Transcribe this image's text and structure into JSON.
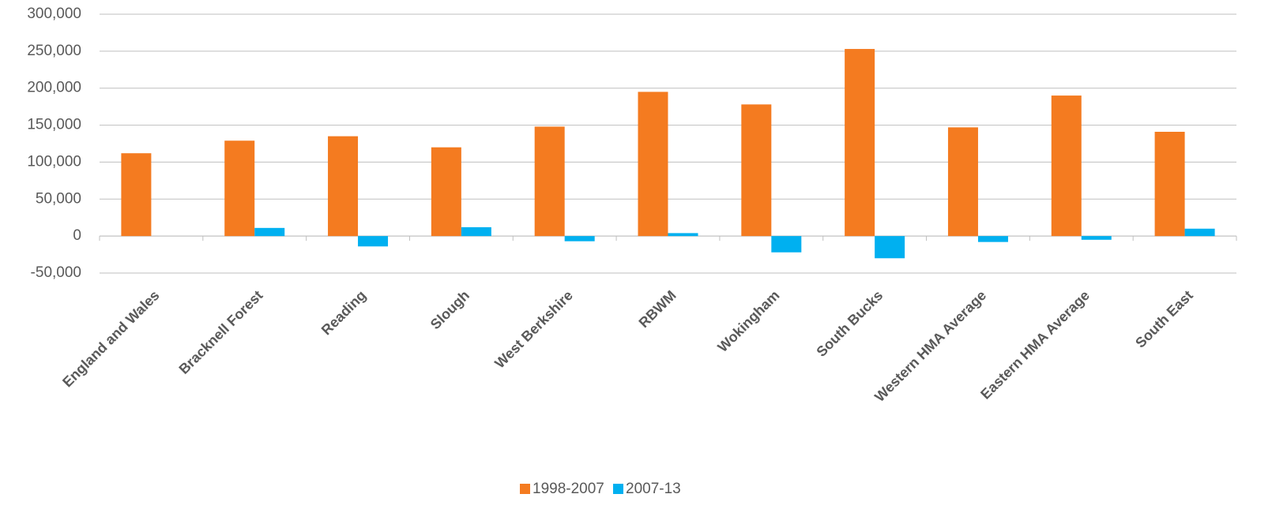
{
  "chart_data": {
    "type": "bar",
    "categories": [
      "England and Wales",
      "Bracknell Forest",
      "Reading",
      "Slough",
      "West Berkshire",
      "RBWM",
      "Wokingham",
      "South Bucks",
      "Western HMA Average",
      "Eastern HMA Average",
      "South East"
    ],
    "series": [
      {
        "name": "1998-2007",
        "color": "#f47b20",
        "values": [
          112000,
          129000,
          135000,
          120000,
          148000,
          195000,
          178000,
          253000,
          147000,
          190000,
          141000
        ]
      },
      {
        "name": "2007-13",
        "color": "#00b0f0",
        "values": [
          null,
          11000,
          -14000,
          12000,
          -7000,
          4000,
          -22000,
          -30000,
          -8000,
          -5000,
          10000
        ]
      }
    ],
    "ylim": [
      -50000,
      300000
    ],
    "yticks": [
      {
        "value": -50000,
        "label": "-50,000"
      },
      0,
      {
        "value": 50000,
        "label": "50,000"
      },
      {
        "value": 100000,
        "label": "100,000"
      },
      {
        "value": 150000,
        "label": "150,000"
      },
      {
        "value": 200000,
        "label": "200,000"
      },
      {
        "value": 250000,
        "label": "250,000"
      },
      {
        "value": 300000,
        "label": "300,000"
      }
    ],
    "grid": true,
    "legend": "bottom"
  }
}
